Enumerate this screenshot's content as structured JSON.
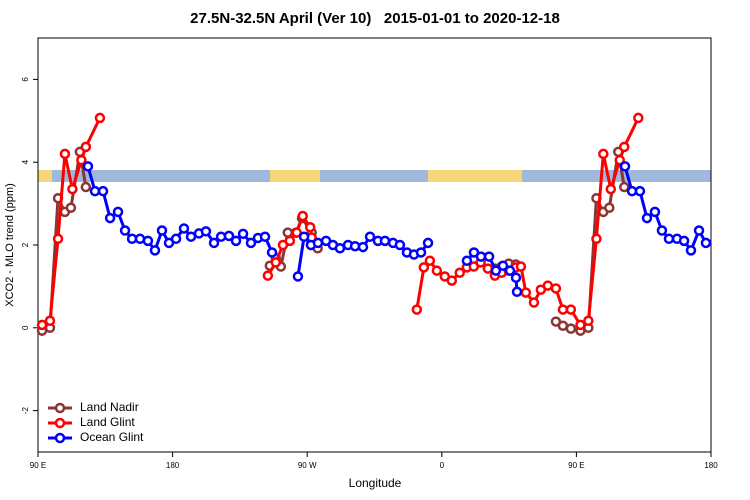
{
  "chart_data": {
    "type": "line",
    "title": "27.5N-32.5N April (Ver 10)   2015-01-01 to 2020-12-18",
    "xlabel": "Longitude",
    "ylabel": "XCO2 - MLO trend (ppm)",
    "xlim": [
      90,
      540
    ],
    "ylim": [
      -3,
      7
    ],
    "xticks": [
      {
        "value": 90,
        "label": "90 E"
      },
      180,
      {
        "value": 270,
        "label": "90 W"
      },
      {
        "value": 360,
        "label": "0"
      },
      {
        "value": 450,
        "label": "90 E"
      },
      {
        "value": 540,
        "label": "180"
      }
    ],
    "yticks": [
      -2,
      0,
      2,
      4,
      6
    ],
    "legend": "bottom left",
    "series": [
      {
        "name": "Land Nadir",
        "color": "#8b3535",
        "x": [
          92.7,
          98,
          103.4,
          108,
          112,
          118,
          122,
          null,
          245,
          249,
          252.4,
          257,
          262.5,
          266.5,
          273,
          277,
          null,
          395.5,
          400,
          404.8,
          409.5,
          null,
          436.3,
          441,
          446.3,
          452.7,
          458,
          463.4,
          468,
          472,
          478,
          482
        ],
        "values": [
          -0.07,
          0,
          3.13,
          2.8,
          2.9,
          4.25,
          3.4,
          null,
          1.5,
          1.68,
          1.48,
          2.3,
          2.3,
          2.65,
          2.3,
          1.92,
          null,
          1.43,
          1.48,
          1.55,
          1.53,
          null,
          0.15,
          0.05,
          -0.02,
          -0.07,
          0,
          3.13,
          2.8,
          2.9,
          4.25,
          3.4
        ]
      },
      {
        "name": "Land Glint",
        "color": "#ff0000",
        "x": [
          92.7,
          98,
          103.4,
          108,
          113,
          119,
          122,
          131.4,
          null,
          243.7,
          249,
          253.8,
          258.4,
          263,
          267,
          272,
          273,
          null,
          343.3,
          348,
          352,
          356.7,
          362,
          366.7,
          372,
          376.8,
          381.4,
          386,
          390.8,
          395.5,
          400,
          404.8,
          409.5,
          412.9,
          416.2,
          421.6,
          426.2,
          430.9,
          436.3,
          441,
          446.3,
          452.7,
          458,
          463.4,
          468,
          473,
          479,
          482,
          491.4
        ],
        "values": [
          0.07,
          0.17,
          2.15,
          4.2,
          3.35,
          4.05,
          4.37,
          5.07,
          null,
          1.26,
          1.58,
          2.0,
          2.1,
          2.3,
          2.7,
          2.43,
          2.18,
          null,
          0.44,
          1.46,
          1.62,
          1.38,
          1.24,
          1.14,
          1.33,
          1.46,
          1.48,
          1.58,
          1.43,
          1.26,
          1.33,
          1.38,
          1.46,
          1.48,
          0.85,
          0.61,
          0.92,
          1.02,
          0.95,
          0.44,
          0.44,
          0.07,
          0.17,
          2.15,
          4.2,
          3.35,
          4.05,
          4.37,
          5.07
        ]
      },
      {
        "name": "Ocean Glint",
        "color": "#0000ff",
        "x": [
          123.4,
          128.1,
          133.5,
          138.2,
          143.5,
          148.2,
          152.9,
          158.2,
          163.5,
          168.2,
          172.9,
          177.6,
          182.3,
          187.6,
          192.3,
          197.6,
          202.3,
          207.7,
          212.4,
          217.7,
          222.4,
          227.1,
          232.4,
          237.1,
          241.8,
          246.5,
          null,
          263.8,
          267.9,
          272.5,
          277.2,
          282.6,
          287.2,
          291.9,
          297.3,
          302,
          307.3,
          312,
          317.3,
          322,
          327.4,
          332,
          336.7,
          341.4,
          346.1,
          350.8,
          null,
          376.8,
          381.5,
          386.2,
          391.6,
          396.2,
          400.9,
          405.6,
          409.6,
          410.3,
          null,
          482.5,
          487.2,
          492.5,
          497.2,
          502.5,
          507.2,
          511.9,
          517.3,
          522,
          526.6,
          532,
          536.6
        ],
        "values": [
          3.9,
          3.3,
          3.3,
          2.65,
          2.8,
          2.35,
          2.15,
          2.15,
          2.1,
          1.87,
          2.35,
          2.05,
          2.15,
          2.4,
          2.2,
          2.28,
          2.33,
          2.05,
          2.2,
          2.22,
          2.1,
          2.27,
          2.05,
          2.17,
          2.2,
          1.82,
          null,
          1.24,
          2.2,
          2.0,
          2.05,
          2.1,
          2.0,
          1.92,
          2.0,
          1.97,
          1.95,
          2.2,
          2.1,
          2.1,
          2.05,
          2.0,
          1.82,
          1.77,
          1.82,
          2.05,
          null,
          1.62,
          1.82,
          1.72,
          1.72,
          1.38,
          1.5,
          1.38,
          1.21,
          0.87,
          null,
          3.9,
          3.3,
          3.3,
          2.65,
          2.8,
          2.35,
          2.15,
          2.15,
          2.1,
          1.87,
          2.35,
          2.05
        ]
      }
    ]
  }
}
